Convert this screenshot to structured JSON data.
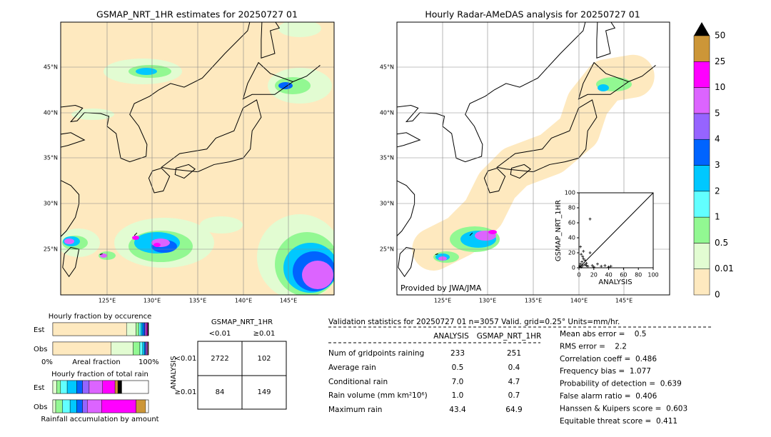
{
  "left_map": {
    "title": "GSMAP_NRT_1HR estimates for 20250727 01",
    "lat_labels": [
      "45°N",
      "40°N",
      "35°N",
      "30°N",
      "25°N"
    ],
    "lon_labels": [
      "125°E",
      "130°E",
      "135°E",
      "140°E",
      "145°E"
    ]
  },
  "right_map": {
    "title": "Hourly Radar-AMeDAS analysis for 20250727 01",
    "lat_labels": [
      "45°N",
      "40°N",
      "35°N",
      "30°N",
      "25°N"
    ],
    "lon_labels": [
      "125°E",
      "130°E",
      "135°E",
      "140°E",
      "145°E"
    ],
    "credit": "Provided by JWA/JMA"
  },
  "colorbar": {
    "levels": [
      "0",
      "0.01",
      "0.5",
      "1",
      "2",
      "3",
      "4",
      "5",
      "10",
      "25",
      "50"
    ],
    "colors": [
      "#fee9bf",
      "#e2fcd2",
      "#92f892",
      "#62ffff",
      "#00c8ff",
      "#0064ff",
      "#9664ff",
      "#dc64ff",
      "#ff00ff",
      "#cc9638",
      "#000000"
    ]
  },
  "scatter": {
    "xlabel": "ANALYSIS",
    "ylabel": "GSMAP_NRT_1HR",
    "xlim": [
      0,
      100
    ],
    "ylim": [
      0,
      100
    ],
    "ticks": [
      0,
      20,
      40,
      60,
      80,
      100
    ],
    "x": [
      1,
      2,
      3,
      4,
      5,
      6,
      8,
      10,
      12,
      15,
      18,
      20,
      25,
      30,
      35,
      40,
      43,
      15,
      2,
      5,
      8,
      3,
      10,
      6
    ],
    "y": [
      2,
      5,
      1,
      8,
      3,
      12,
      4,
      6,
      2,
      65,
      3,
      1,
      5,
      2,
      3,
      1,
      2,
      20,
      28,
      15,
      10,
      18,
      3,
      22
    ]
  },
  "fraction_occurrence": {
    "title": "Hourly fraction by occurence",
    "rows": [
      "Est",
      "Obs"
    ],
    "axis_left": "0%",
    "axis_mid": "Areal fraction",
    "axis_right": "100%",
    "est": [
      0.77,
      0.1,
      0.03,
      0.02,
      0.02,
      0.02,
      0.01,
      0.01,
      0.01,
      0.005,
      0.005
    ],
    "obs": [
      0.61,
      0.23,
      0.07,
      0.03,
      0.02,
      0.01,
      0.01,
      0.01,
      0.005,
      0.005,
      0
    ]
  },
  "fraction_total": {
    "title": "Hourly fraction of total rain",
    "rows": [
      "Est",
      "Obs"
    ],
    "footer": "Rainfall accumulation by amount",
    "est": [
      0.04,
      0.04,
      0.07,
      0.1,
      0.06,
      0.07,
      0.14,
      0.13,
      0.03,
      0.04
    ],
    "obs": [
      0.03,
      0.07,
      0.08,
      0.07,
      0.06,
      0.05,
      0.15,
      0.36,
      0.1,
      0
    ]
  },
  "contingency": {
    "title": "GSMAP_NRT_1HR",
    "cols": [
      "<0.01",
      "≥0.01"
    ],
    "side": "ANALYSIS",
    "rows": [
      "<0.01",
      "≥0.01"
    ],
    "cells": [
      [
        "2722",
        "102"
      ],
      [
        "84",
        "149"
      ]
    ]
  },
  "validation": {
    "title": "Validation statistics for 20250727 01  n=3057 Valid. grid=0.25° Units=mm/hr.",
    "headers": [
      "ANALYSIS",
      "GSMAP_NRT_1HR"
    ],
    "rows": [
      {
        "label": "Num of gridpoints raining",
        "values": [
          "233",
          "251"
        ]
      },
      {
        "label": "Average rain",
        "values": [
          "0.5",
          "0.4"
        ]
      },
      {
        "label": "Conditional rain",
        "values": [
          "7.0",
          "4.7"
        ]
      },
      {
        "label": "Rain volume (mm km²10⁶)",
        "values": [
          "1.0",
          "0.7"
        ]
      },
      {
        "label": "Maximum rain",
        "values": [
          "43.4",
          "64.9"
        ]
      }
    ],
    "scores": [
      "Mean abs error =    0.5",
      "RMS error =    2.2",
      "Correlation coeff =  0.486",
      "Frequency bias =  1.077",
      "Probability of detection =  0.639",
      "False alarm ratio =  0.406",
      "Hanssen & Kuipers score =  0.603",
      "Equitable threat score =  0.411"
    ]
  }
}
